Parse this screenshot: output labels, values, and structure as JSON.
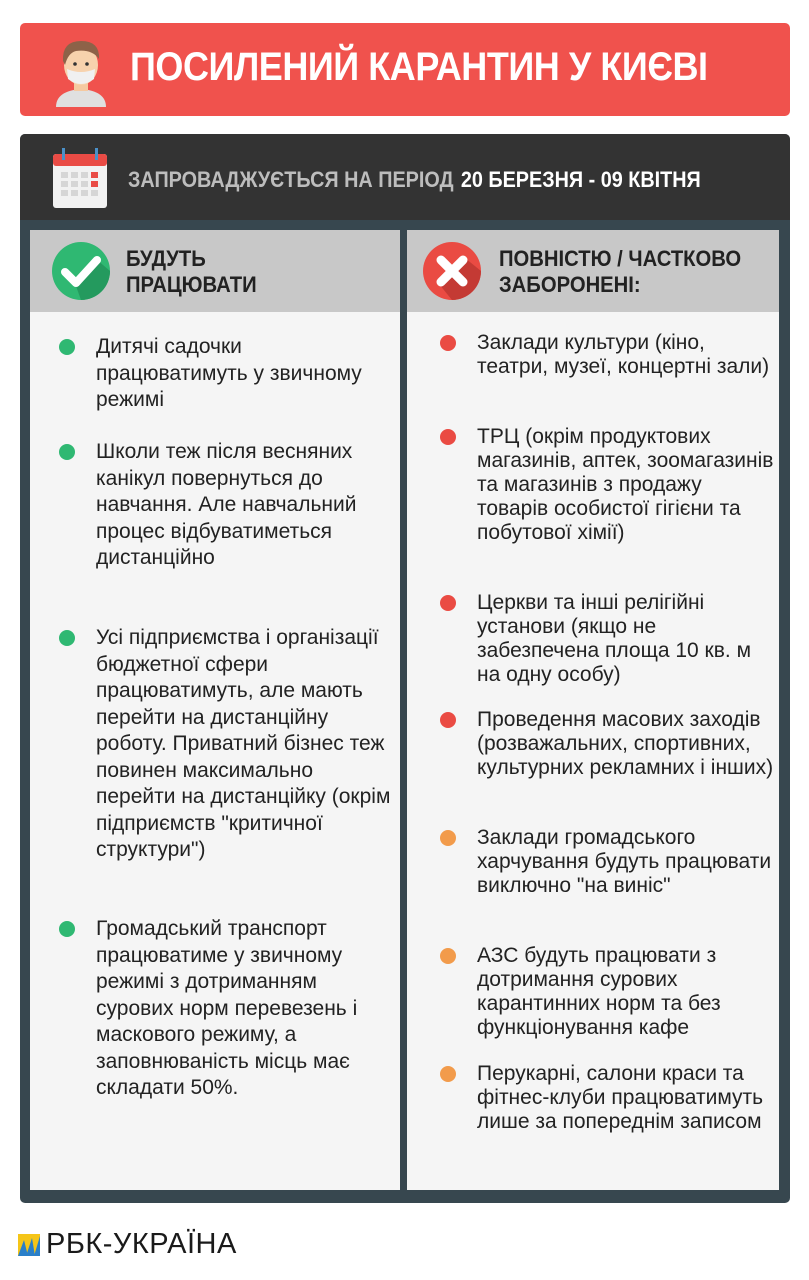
{
  "header": {
    "title": "ПОСИЛЕНИЙ КАРАНТИН У КИЄВІ",
    "icon": "masked-person-icon"
  },
  "period": {
    "label": "ЗАПРОВАДЖУЄТЬСЯ НА ПЕРІОД",
    "dates": "20 БЕРЕЗНЯ - 09 КВІТНЯ",
    "icon": "calendar-icon"
  },
  "colors": {
    "banner": "#f0524d",
    "green": "#2fb872",
    "red": "#ea4b43",
    "orange": "#f29b4b",
    "dark": "#333333",
    "slate": "#37474f"
  },
  "working": {
    "title_line1": "БУДУТЬ",
    "title_line2": "ПРАЦЮВАТИ",
    "items": [
      "Дитячі садочки працюватимуть у звичному режимі",
      "Школи теж після весняних канікул повернуться до навчання. Але навчальний процес відбуватиметься дистанційно",
      "Усі підприємства і організації бюджетної сфери працюватимуть, але мають перейти на дистанційну роботу. Приватний бізнес теж повинен максимально перейти на дистанційку (окрім підприємств \"критичної структури\")",
      "Громадський транспорт працюватиме у звичному режимі з дотриманням сурових норм перевезень і маскового режиму, а заповнюваність місць має складати 50%."
    ]
  },
  "banned": {
    "title_line1": "ПОВНІСТЮ / ЧАСТКОВО",
    "title_line2": "ЗАБОРОНЕНІ:",
    "items": [
      {
        "text": "Заклади культури (кіно, театри, музеї, концертні зали)",
        "status": "full"
      },
      {
        "text": "ТРЦ (окрім продуктових магазинів, аптек, зоомагазинів та магазинів з продажу товарів особистої гігієни та побутової хімії)",
        "status": "full"
      },
      {
        "text": "Церкви та інші релігійні установи (якщо не забезпечена площа 10 кв. м на одну особу)",
        "status": "full"
      },
      {
        "text": "Проведення масових заходів (розважальних, спортивних, культурних рекламних і інших)",
        "status": "full"
      },
      {
        "text": "Заклади громадського харчування будуть працювати виключно \"на виніс\"",
        "status": "partial"
      },
      {
        "text": "АЗС будуть працювати з дотримання сурових карантинних норм та без функціонування кафе",
        "status": "partial"
      },
      {
        "text": "Перукарні, салони краси та фітнес-клуби працюватимуть лише за попереднім записом",
        "status": "partial"
      }
    ]
  },
  "footer": {
    "logo_text": "РБК-УКРАЇНА"
  }
}
